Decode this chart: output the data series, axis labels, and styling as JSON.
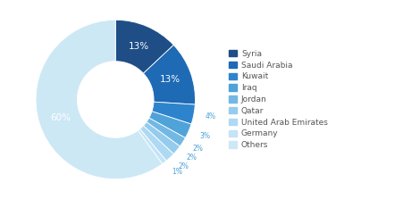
{
  "labels": [
    "Syria",
    "Saudi Arabia",
    "Kuwait",
    "Iraq",
    "Jordan",
    "Qatar",
    "United Arab Emirates",
    "Germany",
    "Others"
  ],
  "values": [
    13,
    13,
    4,
    3,
    2,
    2,
    2,
    1,
    60
  ],
  "colors": [
    "#1f4e87",
    "#1e6ab5",
    "#2e84cc",
    "#4fa3d8",
    "#72b8e4",
    "#95ccee",
    "#aed9f2",
    "#c4e4f7",
    "#cde8f5"
  ],
  "pct_labels": [
    "13%",
    "13%",
    "4%",
    "3%",
    "2%",
    "2%",
    "2%",
    "1%",
    "60%"
  ],
  "background_color": "#ffffff"
}
